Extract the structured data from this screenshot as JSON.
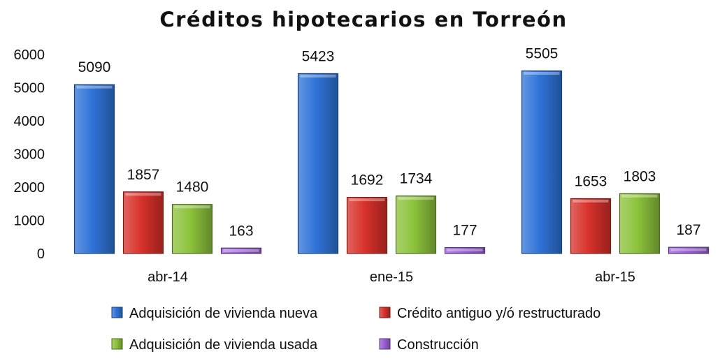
{
  "chart_data": {
    "type": "bar",
    "title": "Créditos hipotecarios en Torreón",
    "categories": [
      "abr-14",
      "ene-15",
      "abr-15"
    ],
    "series": [
      {
        "name": "Adquisición de vivienda nueva",
        "color": "#2f73d8",
        "values": [
          5090,
          5423,
          5505
        ]
      },
      {
        "name": "Crédito antiguo y/ó restructurado",
        "color": "#d8312b",
        "values": [
          1857,
          1692,
          1653
        ]
      },
      {
        "name": "Adquisición de vivienda usada",
        "color": "#8cc23b",
        "values": [
          1480,
          1734,
          1803
        ]
      },
      {
        "name": "Construcción",
        "color": "#9b5fd6",
        "values": [
          163,
          177,
          187
        ]
      }
    ],
    "ylim": [
      0,
      6000
    ],
    "yticks": [
      0,
      1000,
      2000,
      3000,
      4000,
      5000,
      6000
    ],
    "xlabel": "",
    "ylabel": "",
    "grid": false,
    "legend_position": "bottom"
  }
}
